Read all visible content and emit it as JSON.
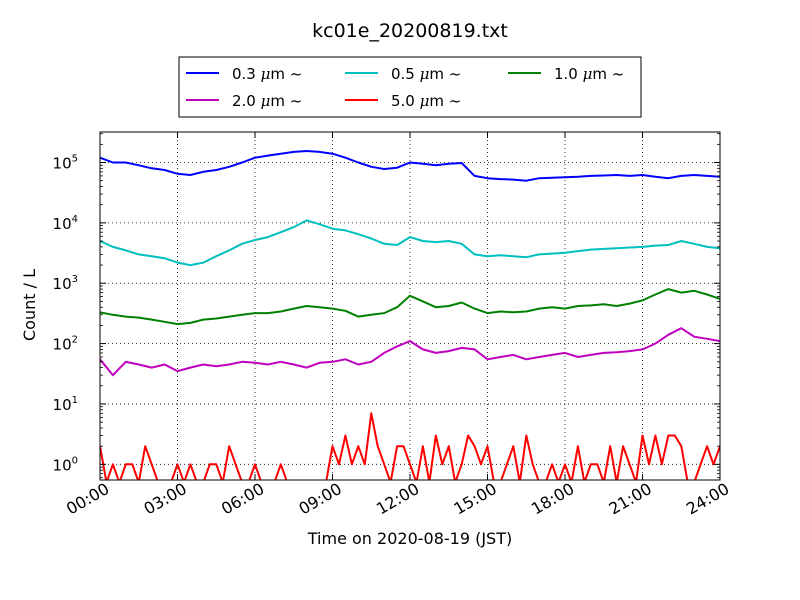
{
  "chart_data": {
    "type": "line",
    "title": "kc01e_20200819.txt",
    "xlabel": "Time on 2020-08-19 (JST)",
    "ylabel": "Count / L",
    "yscale": "log",
    "xlim": [
      "00:00",
      "24:00"
    ],
    "ylim": [
      0.55,
      320000
    ],
    "grid": true,
    "legend_position": "top",
    "x_ticks": [
      "00:00",
      "03:00",
      "06:00",
      "09:00",
      "12:00",
      "15:00",
      "18:00",
      "21:00",
      "24:00"
    ],
    "y_ticks": [
      {
        "value": 1,
        "base": "10",
        "exp": "0"
      },
      {
        "value": 10,
        "base": "10",
        "exp": "1"
      },
      {
        "value": 100,
        "base": "10",
        "exp": "2"
      },
      {
        "value": 1000,
        "base": "10",
        "exp": "3"
      },
      {
        "value": 10000,
        "base": "10",
        "exp": "4"
      },
      {
        "value": 100000,
        "base": "10",
        "exp": "5"
      }
    ],
    "series": [
      {
        "name_num": "0.3 ",
        "name_mu": "μ",
        "name_unit": "m  ~",
        "color": "#0000ff",
        "x": [
          "00:00",
          "00:30",
          "01:00",
          "01:30",
          "02:00",
          "02:30",
          "03:00",
          "03:30",
          "04:00",
          "04:30",
          "05:00",
          "05:30",
          "06:00",
          "06:30",
          "07:00",
          "07:30",
          "08:00",
          "08:30",
          "09:00",
          "09:30",
          "10:00",
          "10:30",
          "11:00",
          "11:30",
          "12:00",
          "12:30",
          "13:00",
          "13:30",
          "14:00",
          "14:30",
          "15:00",
          "15:30",
          "16:00",
          "16:30",
          "17:00",
          "17:30",
          "18:00",
          "18:30",
          "19:00",
          "19:30",
          "20:00",
          "20:30",
          "21:00",
          "21:30",
          "22:00",
          "22:30",
          "23:00",
          "23:30",
          "24:00"
        ],
        "y": [
          120000,
          100000,
          100000,
          90000,
          80000,
          75000,
          65000,
          62000,
          70000,
          75000,
          85000,
          100000,
          120000,
          130000,
          140000,
          150000,
          155000,
          150000,
          140000,
          120000,
          100000,
          85000,
          78000,
          82000,
          100000,
          95000,
          90000,
          95000,
          98000,
          60000,
          55000,
          53000,
          52000,
          50000,
          55000,
          56000,
          57000,
          58000,
          60000,
          61000,
          62000,
          60000,
          62000,
          58000,
          55000,
          60000,
          62000,
          60000,
          58000
        ]
      },
      {
        "name_num": "0.5 ",
        "name_mu": "μ",
        "name_unit": "m  ~",
        "color": "#00bfbf",
        "x": [
          "00:00",
          "00:30",
          "01:00",
          "01:30",
          "02:00",
          "02:30",
          "03:00",
          "03:30",
          "04:00",
          "04:30",
          "05:00",
          "05:30",
          "06:00",
          "06:30",
          "07:00",
          "07:30",
          "08:00",
          "08:30",
          "09:00",
          "09:30",
          "10:00",
          "10:30",
          "11:00",
          "11:30",
          "12:00",
          "12:30",
          "13:00",
          "13:30",
          "14:00",
          "14:30",
          "15:00",
          "15:30",
          "16:00",
          "16:30",
          "17:00",
          "17:30",
          "18:00",
          "18:30",
          "19:00",
          "19:30",
          "20:00",
          "20:30",
          "21:00",
          "21:30",
          "22:00",
          "22:30",
          "23:00",
          "23:30",
          "24:00"
        ],
        "y": [
          5000,
          4000,
          3500,
          3000,
          2800,
          2600,
          2200,
          2000,
          2200,
          2800,
          3500,
          4500,
          5200,
          5800,
          7000,
          8500,
          11000,
          9500,
          8000,
          7500,
          6500,
          5500,
          4500,
          4300,
          5800,
          5000,
          4800,
          5000,
          4500,
          3000,
          2800,
          2900,
          2800,
          2700,
          3000,
          3100,
          3200,
          3400,
          3600,
          3700,
          3800,
          3900,
          4000,
          4200,
          4300,
          5000,
          4500,
          4000,
          3800
        ]
      },
      {
        "name_num": "1.0 ",
        "name_mu": "μ",
        "name_unit": "m  ~",
        "color": "#008000",
        "x": [
          "00:00",
          "00:30",
          "01:00",
          "01:30",
          "02:00",
          "02:30",
          "03:00",
          "03:30",
          "04:00",
          "04:30",
          "05:00",
          "05:30",
          "06:00",
          "06:30",
          "07:00",
          "07:30",
          "08:00",
          "08:30",
          "09:00",
          "09:30",
          "10:00",
          "10:30",
          "11:00",
          "11:30",
          "12:00",
          "12:30",
          "13:00",
          "13:30",
          "14:00",
          "14:30",
          "15:00",
          "15:30",
          "16:00",
          "16:30",
          "17:00",
          "17:30",
          "18:00",
          "18:30",
          "19:00",
          "19:30",
          "20:00",
          "20:30",
          "21:00",
          "21:30",
          "22:00",
          "22:30",
          "23:00",
          "23:30",
          "24:00"
        ],
        "y": [
          330,
          300,
          280,
          270,
          250,
          230,
          210,
          220,
          250,
          260,
          280,
          300,
          320,
          320,
          340,
          380,
          420,
          400,
          380,
          350,
          280,
          300,
          320,
          400,
          620,
          500,
          400,
          420,
          480,
          380,
          320,
          340,
          330,
          340,
          380,
          400,
          380,
          420,
          430,
          450,
          420,
          460,
          520,
          650,
          800,
          700,
          750,
          650,
          550
        ]
      },
      {
        "name_num": "2.0 ",
        "name_mu": "μ",
        "name_unit": "m  ~",
        "color": "#bf00bf",
        "x": [
          "00:00",
          "00:30",
          "01:00",
          "01:30",
          "02:00",
          "02:30",
          "03:00",
          "03:30",
          "04:00",
          "04:30",
          "05:00",
          "05:30",
          "06:00",
          "06:30",
          "07:00",
          "07:30",
          "08:00",
          "08:30",
          "09:00",
          "09:30",
          "10:00",
          "10:30",
          "11:00",
          "11:30",
          "12:00",
          "12:30",
          "13:00",
          "13:30",
          "14:00",
          "14:30",
          "15:00",
          "15:30",
          "16:00",
          "16:30",
          "17:00",
          "17:30",
          "18:00",
          "18:30",
          "19:00",
          "19:30",
          "20:00",
          "20:30",
          "21:00",
          "21:30",
          "22:00",
          "22:30",
          "23:00",
          "23:30",
          "24:00"
        ],
        "y": [
          55,
          30,
          50,
          45,
          40,
          45,
          35,
          40,
          45,
          42,
          45,
          50,
          48,
          45,
          50,
          45,
          40,
          48,
          50,
          55,
          45,
          50,
          70,
          90,
          110,
          80,
          70,
          75,
          85,
          80,
          55,
          60,
          65,
          55,
          60,
          65,
          70,
          60,
          65,
          70,
          72,
          75,
          80,
          100,
          140,
          180,
          130,
          120,
          110
        ]
      },
      {
        "name_num": "5.0 ",
        "name_mu": "μ",
        "name_unit": "m  ~",
        "color": "#ff0000",
        "x": [
          "00:00",
          "00:15",
          "00:30",
          "00:45",
          "01:00",
          "01:15",
          "01:30",
          "01:45",
          "02:00",
          "02:15",
          "02:30",
          "02:45",
          "03:00",
          "03:15",
          "03:30",
          "03:45",
          "04:00",
          "04:15",
          "04:30",
          "04:45",
          "05:00",
          "05:15",
          "05:30",
          "05:45",
          "06:00",
          "06:15",
          "06:30",
          "06:45",
          "07:00",
          "07:15",
          "07:30",
          "07:45",
          "08:00",
          "08:15",
          "08:30",
          "08:45",
          "09:00",
          "09:15",
          "09:30",
          "09:45",
          "10:00",
          "10:15",
          "10:30",
          "10:45",
          "11:00",
          "11:15",
          "11:30",
          "11:45",
          "12:00",
          "12:15",
          "12:30",
          "12:45",
          "13:00",
          "13:15",
          "13:30",
          "13:45",
          "14:00",
          "14:15",
          "14:30",
          "14:45",
          "15:00",
          "15:15",
          "15:30",
          "15:45",
          "16:00",
          "16:15",
          "16:30",
          "16:45",
          "17:00",
          "17:15",
          "17:30",
          "17:45",
          "18:00",
          "18:15",
          "18:30",
          "18:45",
          "19:00",
          "19:15",
          "19:30",
          "19:45",
          "20:00",
          "20:15",
          "20:30",
          "20:45",
          "21:00",
          "21:15",
          "21:30",
          "21:45",
          "22:00",
          "22:15",
          "22:30",
          "22:45",
          "23:00",
          "23:15",
          "23:30",
          "23:45",
          "24:00"
        ],
        "y": [
          2,
          0.5,
          1,
          0.5,
          1,
          1,
          0.5,
          2,
          1,
          0.5,
          0.5,
          0.5,
          1,
          0.5,
          1,
          0.5,
          0.5,
          1,
          1,
          0.5,
          2,
          1,
          0.5,
          0.5,
          1,
          0.5,
          0.5,
          0.5,
          1,
          0.5,
          0.5,
          0.5,
          0.5,
          0.5,
          0.5,
          0.5,
          2,
          1,
          3,
          1,
          2,
          1,
          7,
          2,
          1,
          0.5,
          2,
          2,
          1,
          0.5,
          2,
          0.5,
          3,
          1,
          2,
          0.5,
          1,
          3,
          2,
          1,
          2,
          0.5,
          0.5,
          1,
          2,
          0.5,
          3,
          1,
          0.5,
          0.5,
          1,
          0.5,
          1,
          0.5,
          2,
          0.5,
          1,
          1,
          0.5,
          2,
          0.5,
          2,
          1,
          0.5,
          3,
          1,
          3,
          1,
          3,
          3,
          2,
          0.5,
          0.5,
          1,
          2,
          1,
          2
        ]
      }
    ]
  }
}
